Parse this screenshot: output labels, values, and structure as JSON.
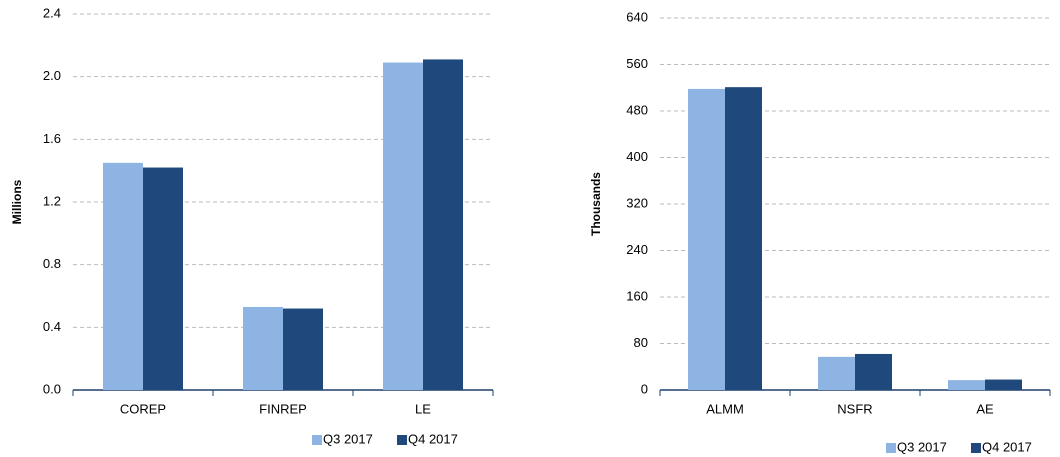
{
  "chart_data": [
    {
      "type": "bar",
      "y_label": "Millions",
      "categories": [
        "COREP",
        "FINREP",
        "LE"
      ],
      "series": [
        {
          "name": "Q3 2017",
          "color": "#8eb4e3",
          "values": [
            1.45,
            0.53,
            2.09
          ]
        },
        {
          "name": "Q4 2017",
          "color": "#1f497d",
          "values": [
            1.42,
            0.52,
            2.11
          ]
        }
      ],
      "ylim": [
        0,
        2.4
      ],
      "yticks": [
        {
          "value": 0,
          "label": "0.0"
        },
        0.4,
        0.8,
        1.2,
        1.6,
        {
          "value": 2,
          "label": "2.0"
        },
        2.4
      ],
      "grid": true,
      "legend": "bottom"
    },
    {
      "type": "bar",
      "y_label": "Thousands",
      "categories": [
        "ALMM",
        "NSFR",
        "AE"
      ],
      "series": [
        {
          "name": "Q3 2017",
          "color": "#8eb4e3",
          "values": [
            518,
            57,
            17
          ]
        },
        {
          "name": "Q4 2017",
          "color": "#1f497d",
          "values": [
            521,
            62,
            18
          ]
        }
      ],
      "ylim": [
        0,
        640
      ],
      "yticks": [
        0,
        80,
        160,
        240,
        320,
        400,
        480,
        560,
        640
      ],
      "grid": true,
      "legend": "bottom"
    }
  ]
}
